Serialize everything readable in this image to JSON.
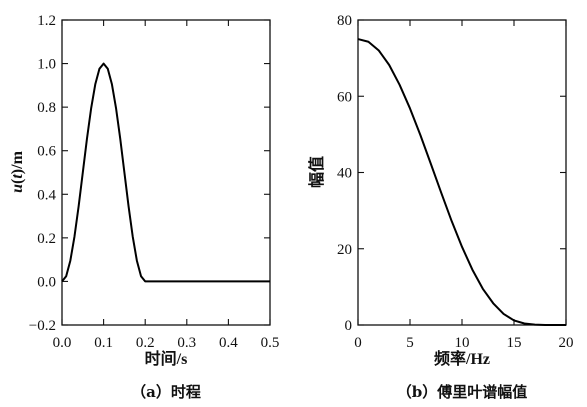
{
  "chart_data": [
    {
      "type": "line",
      "panel_caption": "（a）时程",
      "xlabel": "时间/s",
      "ylabel": "u(t)/m",
      "xlim": [
        0.0,
        0.5
      ],
      "ylim": [
        -0.2,
        1.2
      ],
      "xticks": [
        "0.0",
        "0.1",
        "0.2",
        "0.3",
        "0.4",
        "0.5"
      ],
      "yticks": [
        "−0.2",
        "0.0",
        "0.2",
        "0.4",
        "0.6",
        "0.8",
        "1.0",
        "1.2"
      ],
      "grid": false,
      "series": [
        {
          "x": [
            0.0,
            0.01,
            0.02,
            0.03,
            0.04,
            0.05,
            0.06,
            0.07,
            0.08,
            0.09,
            0.1,
            0.11,
            0.12,
            0.13,
            0.14,
            0.15,
            0.16,
            0.17,
            0.18,
            0.19,
            0.2,
            0.25,
            0.3,
            0.35,
            0.4,
            0.45,
            0.5
          ],
          "y": [
            0.0,
            0.024,
            0.095,
            0.206,
            0.345,
            0.5,
            0.655,
            0.794,
            0.905,
            0.976,
            1.0,
            0.976,
            0.905,
            0.794,
            0.655,
            0.5,
            0.345,
            0.206,
            0.095,
            0.024,
            0.0,
            0.0,
            0.0,
            0.0,
            0.0,
            0.0,
            0.0
          ]
        }
      ]
    },
    {
      "type": "line",
      "panel_caption": "（b）傅里叶谱幅值",
      "xlabel": "频率/Hz",
      "ylabel": "幅值",
      "xlim": [
        0,
        20
      ],
      "ylim": [
        0,
        80
      ],
      "xticks": [
        "0",
        "5",
        "10",
        "15",
        "20"
      ],
      "yticks": [
        "0",
        "20",
        "40",
        "60",
        "80"
      ],
      "grid": false,
      "series": [
        {
          "x": [
            0,
            1,
            2,
            3,
            4,
            5,
            6,
            7,
            8,
            9,
            10,
            11,
            12,
            13,
            14,
            15,
            16,
            17,
            18,
            19,
            20
          ],
          "y": [
            75.0,
            74.3,
            72.0,
            68.2,
            63.0,
            56.8,
            49.8,
            42.3,
            34.7,
            27.3,
            20.5,
            14.5,
            9.5,
            5.7,
            2.9,
            1.2,
            0.4,
            0.1,
            0.0,
            0.0,
            0.0
          ]
        }
      ]
    }
  ]
}
